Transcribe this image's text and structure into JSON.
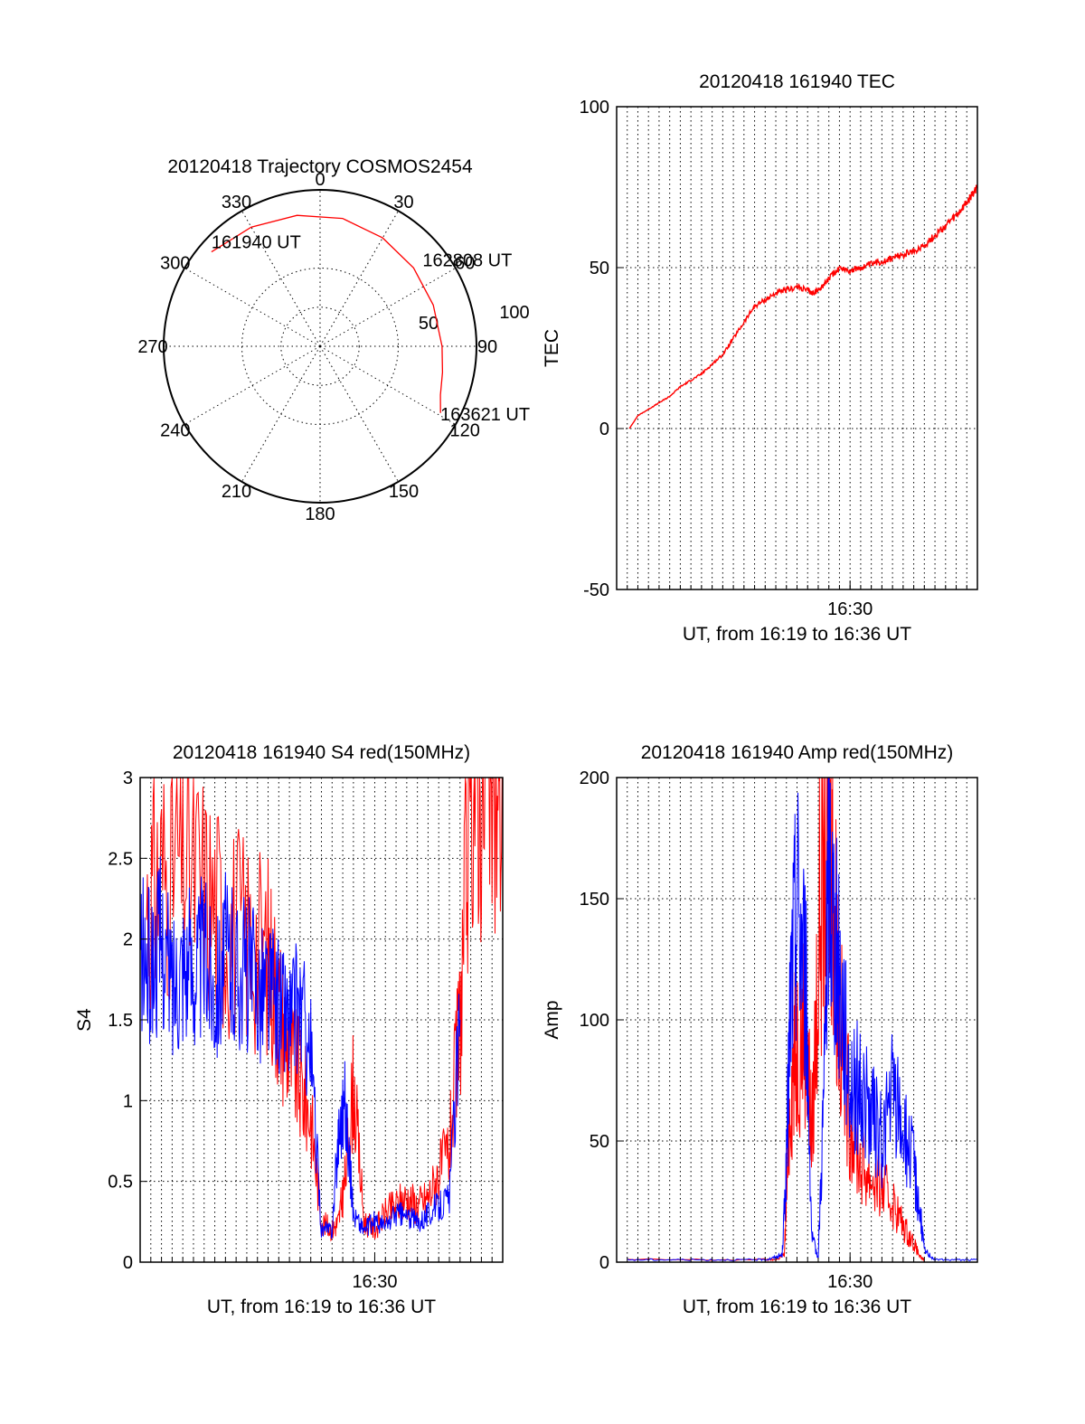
{
  "chart_data": [
    {
      "id": "trajectory",
      "type": "polar",
      "title": "20120418 Trajectory COSMOS2454",
      "azimuth_labels": [
        "0",
        "30",
        "60",
        "90",
        "120",
        "150",
        "180",
        "210",
        "240",
        "270",
        "300",
        "330"
      ],
      "radial_labels": [
        "50",
        "100"
      ],
      "radial_range": [
        0,
        100
      ],
      "grid": "dotted",
      "series": [
        {
          "color": "#ff0000",
          "points": [
            {
              "az": 311,
              "el": 8
            },
            {
              "az": 330,
              "el": 12
            },
            {
              "az": 350,
              "el": 15
            },
            {
              "az": 10,
              "el": 17
            },
            {
              "az": 30,
              "el": 20
            },
            {
              "az": 50,
              "el": 22
            },
            {
              "az": 70,
              "el": 23
            },
            {
              "az": 90,
              "el": 22
            },
            {
              "az": 102,
              "el": 20
            },
            {
              "az": 112,
              "el": 17
            },
            {
              "az": 119,
              "el": 12
            }
          ]
        }
      ],
      "annotations": [
        {
          "text": "161940 UT",
          "az": 311,
          "el": 8
        },
        {
          "text": "162808 UT",
          "az": 50,
          "el": 22
        },
        {
          "text": "163621 UT",
          "az": 119,
          "el": 12
        }
      ]
    },
    {
      "id": "tec",
      "type": "line",
      "title": "20120418 161940 TEC",
      "xlabel": "UT, from 16:19 to 16:36 UT",
      "ylabel": "TEC",
      "x_unit": "minutes after 16:19 UT",
      "xlim": [
        0,
        17
      ],
      "ylim": [
        -50,
        100
      ],
      "yticks": [
        -50,
        0,
        50,
        100
      ],
      "xticks": [
        {
          "x": 11,
          "label": "16:30"
        }
      ],
      "x_minor_grid_step": 0.5,
      "grid": true,
      "series": [
        {
          "color": "#ff0000",
          "x": [
            0.6,
            1.0,
            1.5,
            2.0,
            2.5,
            3.0,
            3.5,
            4.0,
            4.5,
            5.0,
            5.5,
            6.0,
            6.5,
            7.0,
            7.5,
            8.0,
            8.5,
            9.0,
            9.2,
            9.5,
            9.8,
            10.2,
            10.5,
            11.0,
            11.5,
            12.0,
            12.5,
            13.0,
            13.5,
            14.0,
            14.5,
            15.0,
            15.5,
            16.0,
            16.5,
            17.0
          ],
          "y": [
            0,
            4,
            6,
            8,
            10,
            13,
            15,
            17,
            20,
            23,
            28,
            33,
            38,
            40,
            42,
            43,
            44,
            43,
            42,
            43,
            45,
            48,
            50,
            49,
            50,
            51,
            52,
            53,
            54,
            55,
            57,
            60,
            63,
            66,
            70,
            75
          ]
        }
      ]
    },
    {
      "id": "s4",
      "type": "line",
      "title": "20120418 161940 S4 red(150MHz)",
      "xlabel": "UT, from 16:19 to 16:36 UT",
      "ylabel": "S4",
      "x_unit": "minutes after 16:19 UT",
      "xlim": [
        0,
        17
      ],
      "ylim": [
        0,
        3
      ],
      "yticks": [
        0,
        0.5,
        1,
        1.5,
        2,
        2.5,
        3
      ],
      "ytick_labels": [
        "0",
        "0.5",
        "1",
        "1.5",
        "2",
        "2.5",
        "3"
      ],
      "xticks": [
        {
          "x": 11,
          "label": "16:30"
        }
      ],
      "x_minor_grid_step": 0.5,
      "grid": true,
      "series": [
        {
          "color": "#ff0000",
          "x": [
            0.3,
            1.0,
            2.0,
            3.0,
            4.0,
            5.0,
            6.0,
            6.5,
            7.0,
            7.5,
            8.0,
            8.5,
            9.0,
            9.3,
            9.6,
            10.0,
            10.5,
            11.0,
            11.5,
            12.0,
            12.5,
            13.0,
            13.5,
            14.0,
            14.5,
            15.0,
            15.5,
            16.0,
            16.5,
            17.0
          ],
          "y": [
            2.2,
            2.4,
            2.5,
            2.3,
            2.1,
            2.0,
            1.9,
            1.6,
            1.3,
            1.1,
            0.9,
            0.25,
            0.2,
            0.25,
            0.5,
            1.1,
            0.25,
            0.2,
            0.3,
            0.35,
            0.4,
            0.35,
            0.4,
            0.55,
            0.7,
            1.5,
            3.0,
            3.0,
            3.0,
            2.8
          ]
        },
        {
          "color": "#0000ff",
          "x": [
            0.0,
            0.5,
            1.0,
            1.5,
            2.0,
            2.5,
            3.0,
            3.5,
            4.0,
            4.5,
            5.0,
            5.5,
            6.0,
            6.5,
            7.0,
            7.5,
            8.0,
            8.5,
            9.0,
            9.3,
            9.6,
            10.0,
            10.5,
            11.0,
            11.5,
            12.0,
            12.5,
            13.0,
            13.5,
            14.0,
            14.5,
            15.0
          ],
          "y": [
            1.9,
            1.8,
            2.0,
            1.7,
            1.9,
            1.8,
            1.9,
            1.7,
            1.9,
            1.8,
            1.8,
            1.7,
            1.7,
            1.6,
            1.5,
            1.6,
            1.3,
            0.2,
            0.2,
            0.8,
            1.0,
            0.3,
            0.2,
            0.25,
            0.22,
            0.3,
            0.28,
            0.25,
            0.3,
            0.35,
            0.4,
            1.5
          ]
        }
      ]
    },
    {
      "id": "amp",
      "type": "line",
      "title": "20120418 161940 Amp red(150MHz)",
      "xlabel": "UT, from 16:19 to 16:36 UT",
      "ylabel": "Amp",
      "x_unit": "minutes after 16:19 UT",
      "xlim": [
        0,
        17
      ],
      "ylim": [
        0,
        200
      ],
      "yticks": [
        0,
        50,
        100,
        150,
        200
      ],
      "xticks": [
        {
          "x": 11,
          "label": "16:30"
        }
      ],
      "x_minor_grid_step": 0.5,
      "grid": true,
      "series": [
        {
          "color": "#ff0000",
          "x": [
            0.5,
            7.0,
            7.5,
            7.9,
            8.2,
            8.5,
            8.9,
            9.2,
            9.6,
            10.0,
            10.2,
            10.5,
            11.0,
            11.5,
            12.0,
            12.5,
            13.0,
            13.5,
            14.0,
            14.3,
            14.5
          ],
          "y": [
            1,
            1,
            1,
            3,
            70,
            90,
            100,
            50,
            150,
            185,
            160,
            100,
            60,
            40,
            35,
            30,
            25,
            15,
            8,
            2,
            1
          ]
        },
        {
          "color": "#0000ff",
          "x": [
            0.5,
            2.0,
            4.0,
            6.0,
            7.0,
            7.5,
            7.8,
            8.0,
            8.2,
            8.5,
            8.9,
            9.2,
            9.5,
            9.8,
            10.0,
            10.3,
            10.6,
            11.0,
            11.5,
            12.0,
            12.5,
            13.0,
            13.5,
            14.0,
            14.3,
            14.5,
            15.0,
            16.0,
            17.0
          ],
          "y": [
            1,
            1,
            1,
            1,
            1,
            2,
            3,
            40,
            110,
            150,
            120,
            10,
            2,
            80,
            170,
            130,
            110,
            75,
            70,
            60,
            50,
            70,
            55,
            40,
            20,
            5,
            1,
            1,
            1
          ]
        }
      ]
    }
  ]
}
